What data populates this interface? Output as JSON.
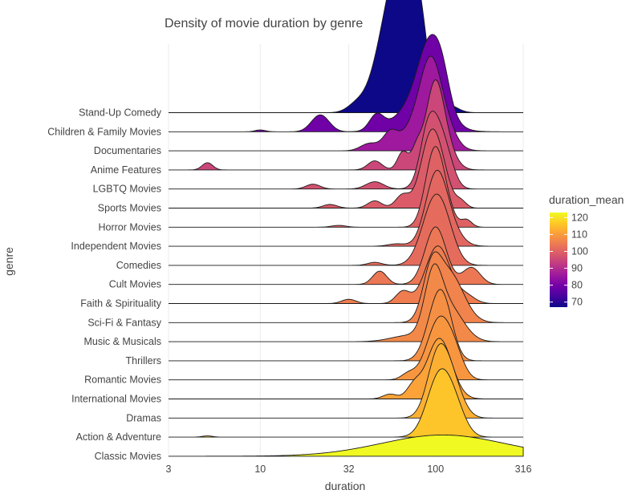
{
  "chart_data": {
    "type": "ridgeline",
    "title": "Density of movie duration by genre",
    "xlabel": "duration",
    "ylabel": "genre",
    "x_scale": "log10",
    "xlim": [
      3,
      316
    ],
    "x_ticks": [
      3,
      10,
      32,
      100,
      316
    ],
    "x_tick_labels": [
      "3",
      "10",
      "32",
      "100",
      "316"
    ],
    "grid": true,
    "legend": {
      "title": "duration_mean",
      "placement": "right",
      "range": [
        67,
        123
      ],
      "ticks": [
        70,
        80,
        90,
        100,
        110,
        120
      ],
      "tick_labels": [
        "70",
        "80",
        "90",
        "100",
        "110",
        "120"
      ]
    },
    "colorscale": [
      "#0d0887",
      "#46039f",
      "#7201a8",
      "#9c179e",
      "#bd3786",
      "#d8576b",
      "#ed7953",
      "#fb9f3a",
      "#fdca26",
      "#f0f921"
    ],
    "categories": [
      "Stand-Up Comedy",
      "Children & Family Movies",
      "Documentaries",
      "Anime Features",
      "LGBTQ Movies",
      "Sports Movies",
      "Horror Movies",
      "Independent Movies",
      "Comedies",
      "Cult Movies",
      "Faith & Spirituality",
      "Sci-Fi & Fantasy",
      "Music & Musicals",
      "Thrillers",
      "Romantic Movies",
      "International Movies",
      "Dramas",
      "Action & Adventure",
      "Classic Movies"
    ],
    "series": [
      {
        "genre": "Stand-Up Comedy",
        "duration_mean": 67,
        "peaks": [
          [
            62,
            0.1,
            2.4
          ],
          [
            72,
            0.05,
            0.95
          ],
          [
            85,
            0.03,
            0.35
          ],
          [
            35,
            0.05,
            0.1
          ],
          [
            120,
            0.05,
            0.1
          ]
        ]
      },
      {
        "genre": "Children & Family Movies",
        "duration_mean": 79,
        "peaks": [
          [
            95,
            0.07,
            1.1
          ],
          [
            82,
            0.12,
            0.5
          ],
          [
            46,
            0.04,
            0.25
          ],
          [
            22,
            0.05,
            0.28
          ],
          [
            110,
            0.04,
            0.25
          ],
          [
            10,
            0.03,
            0.03
          ]
        ]
      },
      {
        "genre": "Documentaries",
        "duration_mean": 86,
        "peaks": [
          [
            95,
            0.06,
            1.05
          ],
          [
            85,
            0.1,
            0.55
          ],
          [
            55,
            0.04,
            0.25
          ],
          [
            42,
            0.05,
            0.12
          ],
          [
            120,
            0.05,
            0.15
          ]
        ]
      },
      {
        "genre": "Anime Features",
        "duration_mean": 95,
        "peaks": [
          [
            98,
            0.05,
            1.15
          ],
          [
            110,
            0.06,
            0.45
          ],
          [
            78,
            0.03,
            0.32
          ],
          [
            65,
            0.03,
            0.3
          ],
          [
            45,
            0.04,
            0.15
          ],
          [
            5,
            0.03,
            0.12
          ]
        ]
      },
      {
        "genre": "LGBTQ Movies",
        "duration_mean": 97,
        "peaks": [
          [
            100,
            0.06,
            1.1
          ],
          [
            88,
            0.04,
            0.35
          ],
          [
            45,
            0.05,
            0.12
          ],
          [
            20,
            0.04,
            0.08
          ],
          [
            120,
            0.04,
            0.15
          ]
        ]
      },
      {
        "genre": "Sports Movies",
        "duration_mean": 99,
        "peaks": [
          [
            100,
            0.06,
            1.05
          ],
          [
            88,
            0.05,
            0.4
          ],
          [
            65,
            0.04,
            0.22
          ],
          [
            45,
            0.04,
            0.12
          ],
          [
            25,
            0.04,
            0.06
          ],
          [
            140,
            0.03,
            0.1
          ]
        ]
      },
      {
        "genre": "Horror Movies",
        "duration_mean": 100,
        "peaks": [
          [
            97,
            0.05,
            1.05
          ],
          [
            110,
            0.05,
            0.45
          ],
          [
            150,
            0.03,
            0.12
          ],
          [
            28,
            0.04,
            0.03
          ]
        ]
      },
      {
        "genre": "Independent Movies",
        "duration_mean": 101,
        "peaks": [
          [
            100,
            0.06,
            1.0
          ],
          [
            115,
            0.07,
            0.35
          ],
          [
            60,
            0.05,
            0.04
          ]
        ]
      },
      {
        "genre": "Comedies",
        "duration_mean": 102,
        "peaks": [
          [
            98,
            0.07,
            1.0
          ],
          [
            115,
            0.06,
            0.3
          ],
          [
            45,
            0.04,
            0.05
          ]
        ]
      },
      {
        "genre": "Cult Movies",
        "duration_mean": 104,
        "peaks": [
          [
            100,
            0.06,
            0.95
          ],
          [
            160,
            0.05,
            0.28
          ],
          [
            48,
            0.04,
            0.22
          ]
        ]
      },
      {
        "genre": "Faith & Spirituality",
        "duration_mean": 105,
        "peaks": [
          [
            103,
            0.07,
            0.95
          ],
          [
            65,
            0.04,
            0.2
          ],
          [
            150,
            0.05,
            0.12
          ],
          [
            32,
            0.04,
            0.07
          ]
        ]
      },
      {
        "genre": "Sci-Fi & Fantasy",
        "duration_mean": 106,
        "peaks": [
          [
            95,
            0.05,
            0.75
          ],
          [
            120,
            0.08,
            0.8
          ]
        ]
      },
      {
        "genre": "Music & Musicals",
        "duration_mean": 107,
        "peaks": [
          [
            97,
            0.05,
            0.95
          ],
          [
            120,
            0.08,
            0.55
          ],
          [
            70,
            0.1,
            0.1
          ]
        ]
      },
      {
        "genre": "Thrillers",
        "duration_mean": 108,
        "peaks": [
          [
            102,
            0.06,
            0.9
          ],
          [
            115,
            0.05,
            0.4
          ]
        ]
      },
      {
        "genre": "Romantic Movies",
        "duration_mean": 109,
        "peaks": [
          [
            105,
            0.07,
            1.0
          ],
          [
            130,
            0.05,
            0.25
          ],
          [
            70,
            0.04,
            0.1
          ]
        ]
      },
      {
        "genre": "International Movies",
        "duration_mean": 111,
        "peaks": [
          [
            105,
            0.07,
            1.0
          ],
          [
            75,
            0.04,
            0.2
          ],
          [
            55,
            0.04,
            0.08
          ]
        ]
      },
      {
        "genre": "Dramas",
        "duration_mean": 113,
        "peaks": [
          [
            103,
            0.06,
            1.0
          ],
          [
            125,
            0.06,
            0.5
          ]
        ]
      },
      {
        "genre": "Action & Adventure",
        "duration_mean": 116,
        "peaks": [
          [
            105,
            0.07,
            1.0
          ],
          [
            130,
            0.06,
            0.35
          ],
          [
            5,
            0.03,
            0.02
          ]
        ]
      },
      {
        "genre": "Classic Movies",
        "duration_mean": 123,
        "peaks": [
          [
            110,
            0.35,
            0.35
          ]
        ]
      }
    ]
  }
}
